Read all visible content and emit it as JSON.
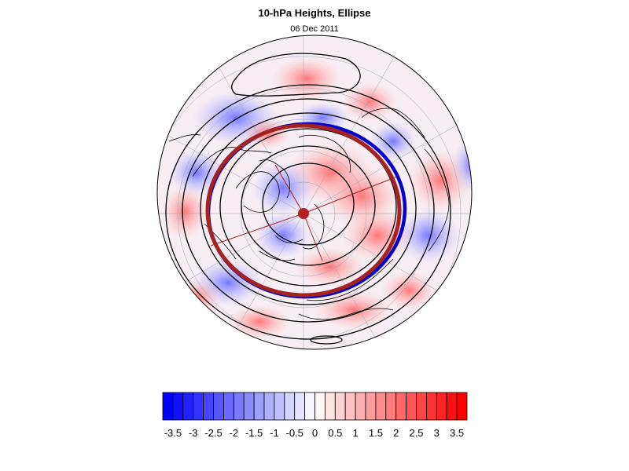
{
  "title": "10-hPa Heights, Ellipse",
  "date": "06 Dec 2011",
  "colorbar": {
    "labels": [
      "-3.5",
      "-3",
      "-2.5",
      "-2",
      "-1.5",
      "-1",
      "-0.5",
      "0",
      "0.5",
      "1",
      "1.5",
      "2",
      "2.5",
      "3",
      "3.5"
    ],
    "min": -3.75,
    "max": 3.75,
    "step": 0.25,
    "neg_color": "#0000ff",
    "pos_color": "#ff0000",
    "neutral_color": "#ffffff"
  },
  "colors": {
    "ellipse_fit": "#a52222",
    "ellipse_blue": "#0000cc",
    "contours": "#000000",
    "vortex_center": "#b22222"
  }
}
